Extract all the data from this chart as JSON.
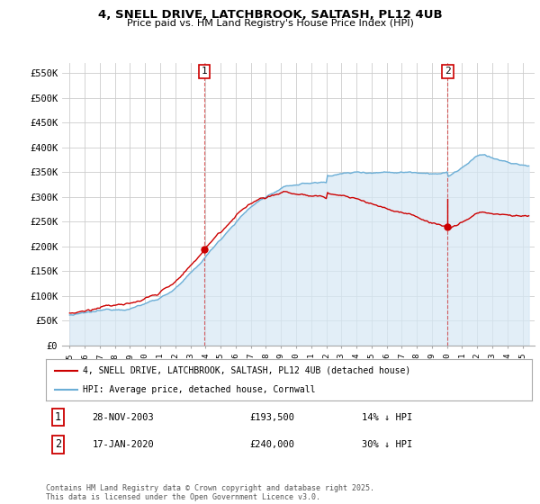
{
  "title_line1": "4, SNELL DRIVE, LATCHBROOK, SALTASH, PL12 4UB",
  "title_line2": "Price paid vs. HM Land Registry's House Price Index (HPI)",
  "ylim": [
    0,
    570000
  ],
  "yticks": [
    0,
    50000,
    100000,
    150000,
    200000,
    250000,
    300000,
    350000,
    400000,
    450000,
    500000,
    550000
  ],
  "ytick_labels": [
    "£0",
    "£50K",
    "£100K",
    "£150K",
    "£200K",
    "£250K",
    "£300K",
    "£350K",
    "£400K",
    "£450K",
    "£500K",
    "£550K"
  ],
  "hpi_color": "#6baed6",
  "hpi_fill_color": "#d6e8f5",
  "price_color": "#cc0000",
  "sale1_x": 2003.917,
  "sale1_price": 193500,
  "sale2_x": 2020.042,
  "sale2_price": 240000,
  "legend_label1": "4, SNELL DRIVE, LATCHBROOK, SALTASH, PL12 4UB (detached house)",
  "legend_label2": "HPI: Average price, detached house, Cornwall",
  "footnote": "Contains HM Land Registry data © Crown copyright and database right 2025.\nThis data is licensed under the Open Government Licence v3.0.",
  "background_color": "#ffffff",
  "grid_color": "#cccccc",
  "xlim_left": 1994.5,
  "xlim_right": 2025.8
}
